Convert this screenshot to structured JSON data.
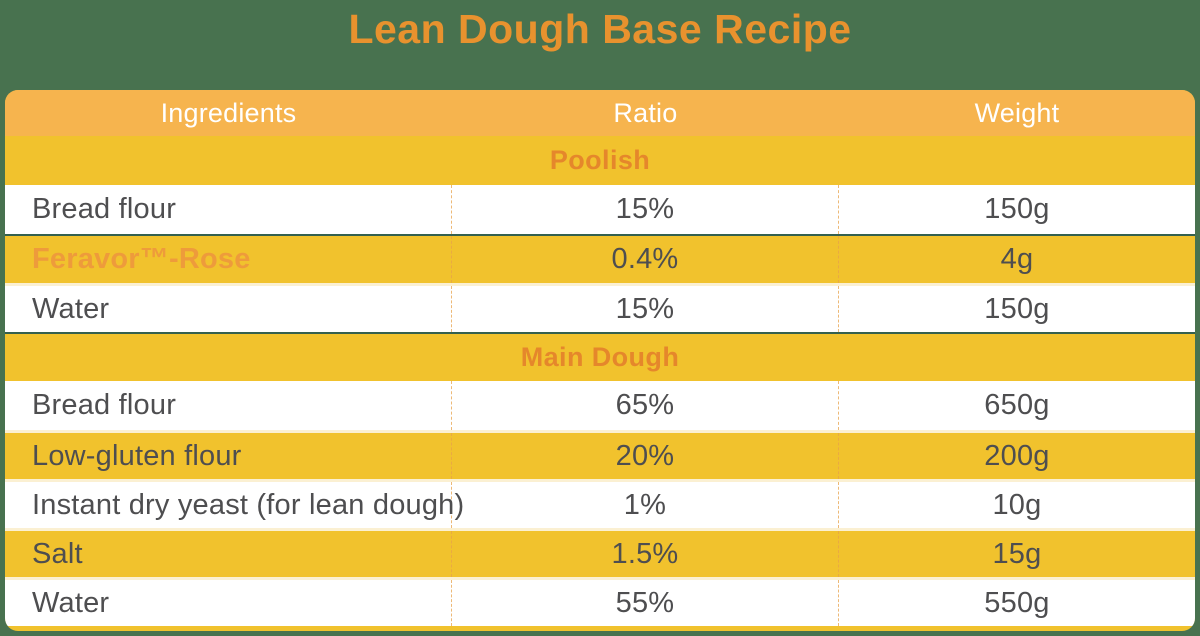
{
  "title": "Lean Dough Base Recipe",
  "colors": {
    "background_green": "#48724F",
    "header_row_orange": "#F6B44E",
    "row_yellow": "#F1C22D",
    "row_white": "#FFFFFF",
    "accent_orange": "#E8922E",
    "brand_orange": "#EE9B3B",
    "data_text_gray": "#4E4E50"
  },
  "table": {
    "columns": [
      {
        "label": "Ingredients"
      },
      {
        "label": "Ratio"
      },
      {
        "label": "Weight"
      }
    ],
    "sections": [
      {
        "name": "Poolish",
        "sep": "none",
        "rows": [
          {
            "ingredient": "Bread flour",
            "ratio": "15%",
            "weight": "150g",
            "highlight": false,
            "brand": false,
            "sep": "none"
          },
          {
            "ingredient": "Feravor™-Rose",
            "ratio": "0.4%",
            "weight": "4g",
            "highlight": true,
            "brand": true,
            "sep": "dark"
          },
          {
            "ingredient": "Water",
            "ratio": "15%",
            "weight": "150g",
            "highlight": false,
            "brand": false,
            "sep": "light"
          }
        ]
      },
      {
        "name": "Main Dough",
        "sep": "dark",
        "rows": [
          {
            "ingredient": "Bread flour",
            "ratio": "65%",
            "weight": "650g",
            "highlight": false,
            "brand": false,
            "sep": "none"
          },
          {
            "ingredient": "Low-gluten flour",
            "ratio": "20%",
            "weight": "200g",
            "highlight": true,
            "brand": false,
            "sep": "light"
          },
          {
            "ingredient": "Instant dry yeast (for lean dough)",
            "ratio": "1%",
            "weight": "10g",
            "highlight": false,
            "brand": false,
            "sep": "light"
          },
          {
            "ingredient": "Salt",
            "ratio": "1.5%",
            "weight": "15g",
            "highlight": true,
            "brand": false,
            "sep": "light"
          },
          {
            "ingredient": "Water",
            "ratio": "55%",
            "weight": "550g",
            "highlight": false,
            "brand": false,
            "sep": "light"
          }
        ]
      }
    ]
  }
}
